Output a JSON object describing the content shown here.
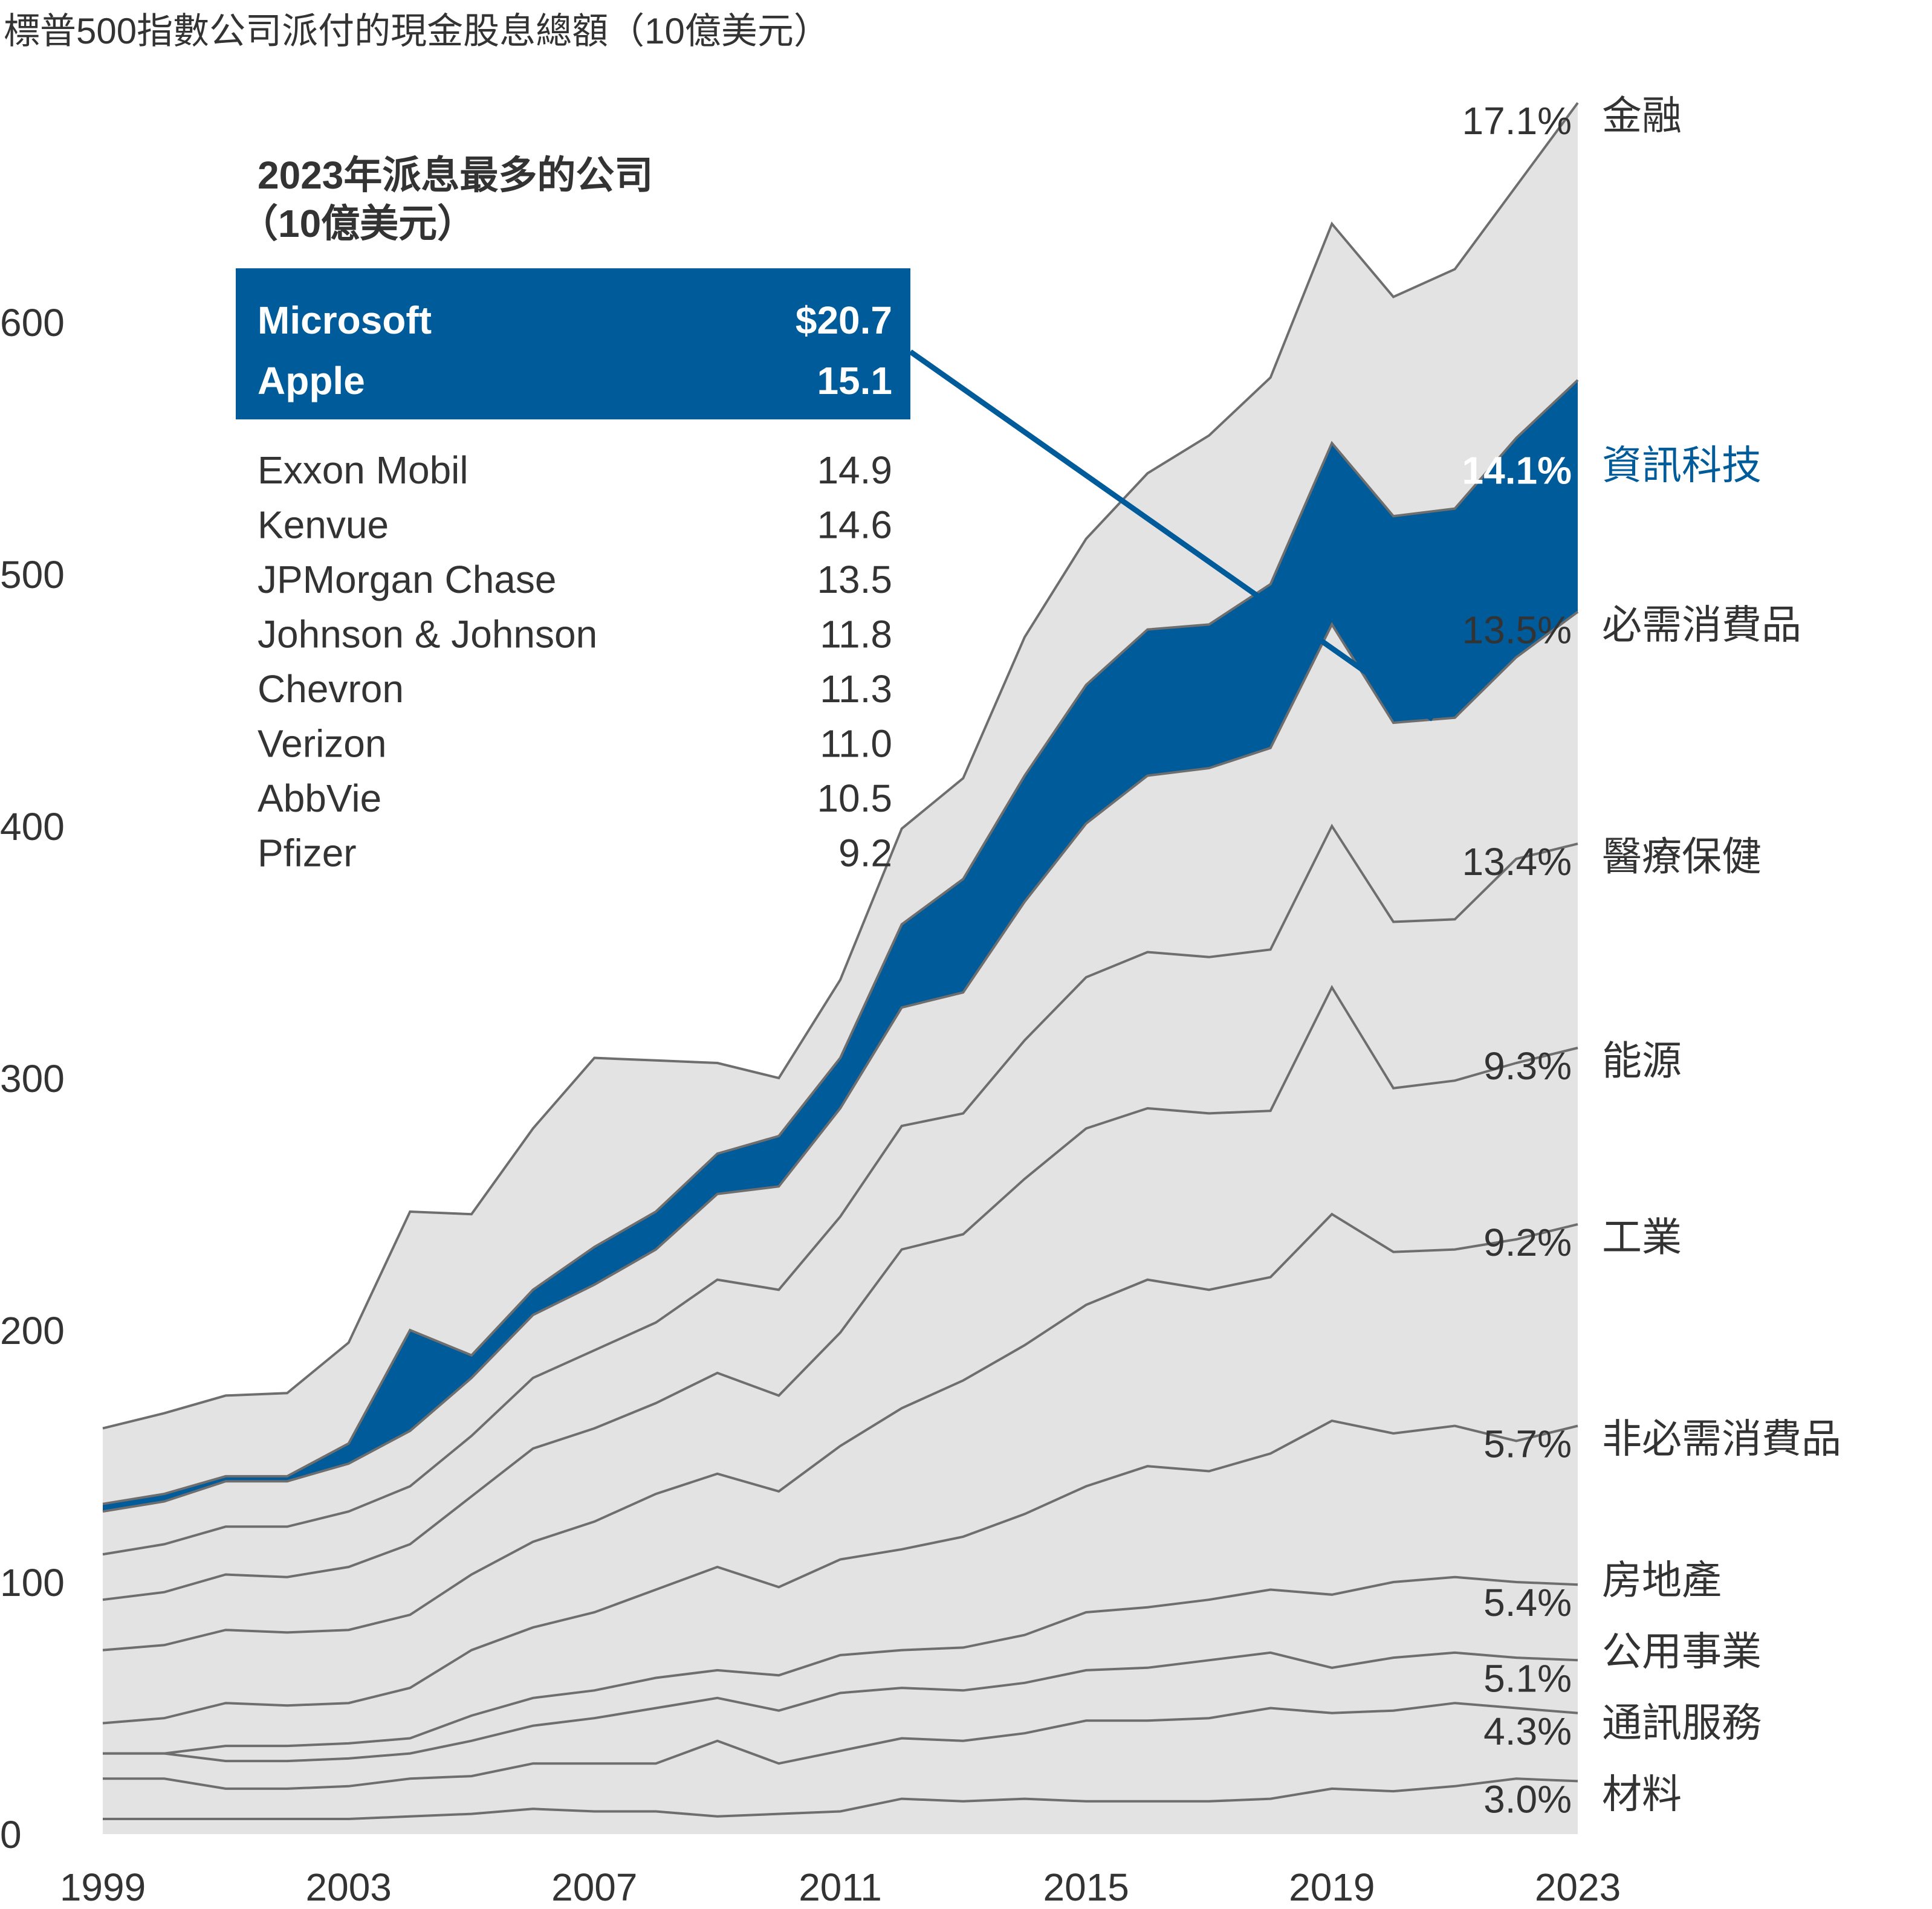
{
  "chart_data": {
    "type": "area",
    "stacked": true,
    "title": "標普500指數公司派付的現金股息總額（10億美元）",
    "xlabel": "",
    "ylabel": "",
    "ylim": [
      0,
      650
    ],
    "xlim": [
      1999,
      2023
    ],
    "yticks": [
      0,
      100,
      200,
      300,
      400,
      500,
      600
    ],
    "ytick_labels": [
      "0",
      "100",
      "200",
      "300",
      "400",
      "500",
      "600"
    ],
    "xticks": [
      1999,
      2003,
      2007,
      2011,
      2015,
      2019,
      2023
    ],
    "xtick_labels": [
      "1999",
      "2003",
      "2007",
      "2011",
      "2015",
      "2019",
      "2023"
    ],
    "x": [
      1999,
      2000,
      2001,
      2002,
      2003,
      2004,
      2005,
      2006,
      2007,
      2008,
      2009,
      2010,
      2011,
      2012,
      2013,
      2014,
      2015,
      2016,
      2017,
      2018,
      2019,
      2020,
      2021,
      2022,
      2023
    ],
    "highlight_series": "資訊科技",
    "highlight_color": "#005B9A",
    "base_color": "#E3E3E3",
    "line_color": "#6E6E6E",
    "series": [
      {
        "name": "材料",
        "pct_label": "3.0%",
        "values": [
          6,
          6,
          6,
          6,
          6,
          7,
          8,
          10,
          9,
          9,
          7,
          8,
          9,
          14,
          13,
          14,
          13,
          13,
          13,
          14,
          18,
          17,
          19,
          22,
          21
        ]
      },
      {
        "name": "通訊服務",
        "pct_label": "4.3%",
        "values": [
          16,
          16,
          12,
          12,
          13,
          15,
          15,
          18,
          19,
          19,
          30,
          20,
          24,
          24,
          24,
          26,
          32,
          32,
          33,
          36,
          30,
          32,
          33,
          28,
          27
        ]
      },
      {
        "name": "公用事業",
        "pct_label": "5.1%",
        "values": [
          10,
          10,
          11,
          11,
          11,
          10,
          14,
          15,
          18,
          22,
          17,
          21,
          23,
          20,
          20,
          20,
          20,
          21,
          23,
          22,
          18,
          21,
          20,
          20,
          21
        ]
      },
      {
        "name": "房地產",
        "pct_label": "5.4%",
        "values": [
          0,
          0,
          6,
          6,
          6,
          6,
          10,
          11,
          11,
          12,
          11,
          14,
          15,
          15,
          17,
          19,
          23,
          24,
          24,
          25,
          29,
          30,
          30,
          30,
          30
        ]
      },
      {
        "name": "非必需消費品",
        "pct_label": "5.7%",
        "values": [
          12,
          14,
          17,
          16,
          16,
          20,
          26,
          28,
          31,
          35,
          41,
          35,
          38,
          40,
          44,
          48,
          50,
          56,
          51,
          54,
          69,
          59,
          60,
          56,
          63
        ]
      },
      {
        "name": "工業",
        "pct_label": "9.2%",
        "values": [
          29,
          29,
          29,
          29,
          29,
          29,
          30,
          34,
          36,
          38,
          37,
          38,
          45,
          56,
          62,
          67,
          72,
          74,
          72,
          70,
          82,
          72,
          70,
          80,
          80
        ]
      },
      {
        "name": "能源",
        "pct_label": "9.3%",
        "values": [
          20,
          21,
          22,
          22,
          25,
          28,
          31,
          37,
          37,
          36,
          40,
          38,
          45,
          63,
          58,
          66,
          70,
          68,
          70,
          66,
          90,
          65,
          67,
          70,
          70
        ]
      },
      {
        "name": "醫療保健",
        "pct_label": "13.4%",
        "values": [
          18,
          19,
          19,
          20,
          22,
          23,
          24,
          28,
          31,
          32,
          37,
          42,
          46,
          49,
          48,
          55,
          60,
          62,
          62,
          64,
          64,
          66,
          64,
          81,
          81
        ]
      },
      {
        "name": "必需消費品",
        "pct_label": "13.5%",
        "values": [
          17,
          17,
          18,
          18,
          19,
          22,
          23,
          25,
          26,
          29,
          34,
          41,
          43,
          47,
          48,
          55,
          61,
          70,
          75,
          80,
          80,
          79,
          80,
          80,
          92
        ]
      },
      {
        "name": "資訊科技",
        "pct_label": "14.1%",
        "values": [
          3,
          3,
          2,
          2,
          8,
          40,
          9,
          10,
          15,
          15,
          16,
          20,
          20,
          33,
          45,
          50,
          55,
          58,
          57,
          65,
          72,
          82,
          83,
          87,
          92
        ]
      },
      {
        "name": "金融",
        "pct_label": "17.1%",
        "values": [
          30,
          32,
          32,
          33,
          40,
          47,
          56,
          64,
          75,
          60,
          36,
          23,
          31,
          38,
          40,
          55,
          58,
          62,
          75,
          82,
          87,
          87,
          95,
          100,
          110
        ]
      }
    ],
    "inset": {
      "title_line1": "2023年派息最多的公司",
      "title_line2": "（10億美元）",
      "highlighted": [
        {
          "company": "Microsoft",
          "value": "$20.7"
        },
        {
          "company": "Apple",
          "value": "15.1"
        }
      ],
      "rows": [
        {
          "company": "Exxon Mobil",
          "value": "14.9"
        },
        {
          "company": "Kenvue",
          "value": "14.6"
        },
        {
          "company": "JPMorgan Chase",
          "value": "13.5"
        },
        {
          "company": "Johnson & Johnson",
          "value": "11.8"
        },
        {
          "company": "Chevron",
          "value": "11.3"
        },
        {
          "company": "Verizon",
          "value": "11.0"
        },
        {
          "company": "AbbVie",
          "value": "10.5"
        },
        {
          "company": "Pfizer",
          "value": "9.2"
        }
      ]
    }
  }
}
